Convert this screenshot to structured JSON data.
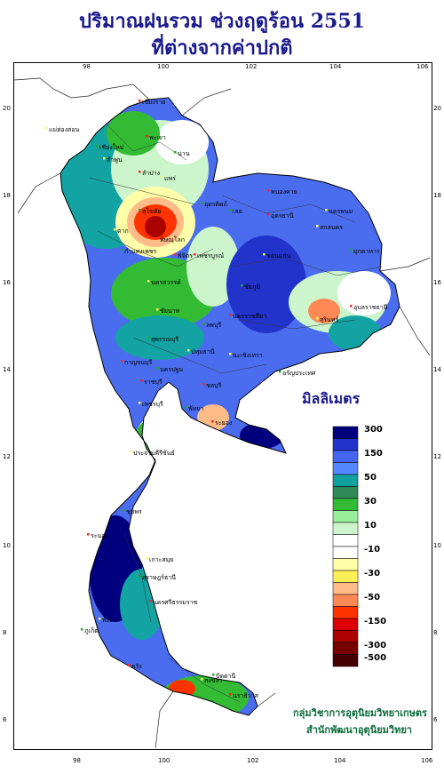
{
  "title": {
    "line1": "ปริมาณฝนรวม ช่วงฤดูร้อน 2551",
    "line2": "ที่ต่างจากค่าปกติ"
  },
  "axes": {
    "lon_ticks": [
      "98",
      "100",
      "102",
      "104",
      "106"
    ],
    "lat_ticks": [
      "20",
      "18",
      "16",
      "14",
      "12",
      "10",
      "8",
      "6"
    ]
  },
  "legend": {
    "title": "มิลลิเมตร",
    "bins": [
      {
        "color": "#00007f",
        "label": "300"
      },
      {
        "color": "#2233cc",
        "label": ""
      },
      {
        "color": "#4466ee",
        "label": "150"
      },
      {
        "color": "#5588ff",
        "label": ""
      },
      {
        "color": "#10a0a0",
        "label": "50"
      },
      {
        "color": "#2e8b57",
        "label": ""
      },
      {
        "color": "#33bb33",
        "label": "30"
      },
      {
        "color": "#99ee99",
        "label": ""
      },
      {
        "color": "#ccf5cc",
        "label": "10"
      },
      {
        "color": "#ffffff",
        "label": ""
      },
      {
        "color": "#ffffff",
        "label": "-10"
      },
      {
        "color": "#ffffaa",
        "label": ""
      },
      {
        "color": "#ffee55",
        "label": "-30"
      },
      {
        "color": "#ffbb88",
        "label": ""
      },
      {
        "color": "#ff8855",
        "label": "-50"
      },
      {
        "color": "#ff3300",
        "label": ""
      },
      {
        "color": "#dd0000",
        "label": "-150"
      },
      {
        "color": "#aa0000",
        "label": ""
      },
      {
        "color": "#770000",
        "label": "-300"
      },
      {
        "color": "#440000",
        "label": "-500"
      }
    ]
  },
  "places": [
    "เชียงราย",
    "แม่ฮ่องสอน",
    "เชียงใหม่",
    "พะเยา",
    "ลำพูน",
    "น่าน",
    "ลำปาง",
    "แพร่",
    "อุตรดิตถ์",
    "หนองคาย",
    "ตาก",
    "เลย",
    "อุดรธานี",
    "นครพนม",
    "สุโขทัย",
    "พิษณุโลก",
    "สกลนคร",
    "กำแพงเพชร",
    "พิจิตร",
    "ขอนแก่น",
    "มุกดาหาร",
    "เพชรบูรณ์",
    "นครสวรรค์",
    "ชัยภูมิ",
    "อุบลราชธานี",
    "ชัยนาท",
    "ลพบุรี",
    "นครราชสีมา",
    "สุรินทร์",
    "สุพรรณบุรี",
    "กาญจนบุรี",
    "ปทุมธานี",
    "นครปฐม",
    "ราชบุรี",
    "ฉะเชิงเทรา",
    "อรัญประเทศ",
    "ชลบุรี",
    "เพชรบุรี",
    "พัทยา",
    "ระยอง",
    "ประจวบคีรีขันธ์",
    "ชุมพร",
    "ระนอง",
    "เกาะสมุย",
    "สุราษฎร์ธานี",
    "นครศรีธรรมราช",
    "พังงา",
    "ภูเก็ต",
    "ตรัง",
    "สงขลา",
    "ปัตตานี",
    "นราธิวาส"
  ],
  "credit": {
    "line1": "กลุ่มวิชาการอุตุนิยมวิทยาเกษตร",
    "line2": "สำนักพัฒนาอุตุนิยมวิทยา"
  }
}
